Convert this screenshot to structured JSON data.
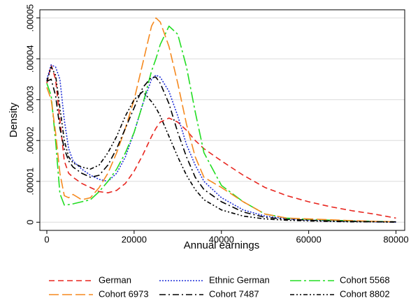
{
  "chart_data": {
    "type": "line",
    "xlabel": "Annual earnings",
    "ylabel": "Density",
    "x": [
      0,
      1000,
      2000,
      3000,
      4000,
      5000,
      6000,
      8000,
      10000,
      12000,
      14000,
      16000,
      18000,
      20000,
      22000,
      24000,
      25000,
      26000,
      28000,
      30000,
      32000,
      34000,
      36000,
      40000,
      45000,
      50000,
      55000,
      60000,
      65000,
      70000,
      75000,
      80000
    ],
    "xlim": [
      -1600,
      82000
    ],
    "xticks": [
      0,
      20000,
      40000,
      60000,
      80000
    ],
    "ylim": [
      -2e-06,
      5.2e-05
    ],
    "yticks": [
      0,
      {
        "value": 1e-05,
        "label": ".00001"
      },
      {
        "value": 2e-05,
        "label": ".00002"
      },
      {
        "value": 3e-05,
        "label": ".00003"
      },
      {
        "value": 4e-05,
        "label": ".00004"
      },
      {
        "value": 5e-05,
        "label": ".00005"
      }
    ],
    "grid": true,
    "legend": "bottom",
    "series": [
      {
        "name": "German",
        "color": "#e8261f",
        "dash": "8,5",
        "values": [
          3.4e-05,
          3.85e-05,
          3.5e-05,
          2.5e-05,
          1.5e-05,
          1.2e-05,
          1.1e-05,
          9.5e-06,
          8.5e-06,
          7.5e-06,
          7.2e-06,
          7.8e-06,
          9.5e-06,
          1.25e-05,
          1.65e-05,
          2.1e-05,
          2.3e-05,
          2.45e-05,
          2.55e-05,
          2.45e-05,
          2.25e-05,
          2e-05,
          1.8e-05,
          1.5e-05,
          1.15e-05,
          8.5e-06,
          6.5e-06,
          5e-06,
          3.8e-06,
          2.8e-06,
          2e-06,
          1e-06
        ]
      },
      {
        "name": "Ethnic German",
        "color": "#1f2fd8",
        "dash": "2,2",
        "values": [
          3.5e-05,
          3.85e-05,
          3.8e-05,
          3.5e-05,
          2.5e-05,
          1.8e-05,
          1.5e-05,
          1.3e-05,
          1.15e-05,
          1.05e-05,
          1e-05,
          1.2e-05,
          1.6e-05,
          2.2e-05,
          2.9e-05,
          3.5e-05,
          3.6e-05,
          3.55e-05,
          3.2e-05,
          2.6e-05,
          1.9e-05,
          1.4e-05,
          1e-05,
          6e-06,
          3e-06,
          1.5e-06,
          8e-07,
          5e-07,
          3e-07,
          2e-07,
          1e-07,
          0
        ]
      },
      {
        "name": "Cohort 5568",
        "color": "#22dd22",
        "dash": "16,4,3,4",
        "values": [
          3.4e-05,
          3.1e-05,
          2e-05,
          7e-06,
          4.2e-06,
          4.3e-06,
          4.5e-06,
          5e-06,
          5.5e-06,
          7.5e-06,
          1e-05,
          1.3e-05,
          1.7e-05,
          2.2e-05,
          2.9e-05,
          3.7e-05,
          4e-05,
          4.35e-05,
          4.8e-05,
          4.6e-05,
          3.8e-05,
          2.7e-05,
          1.7e-05,
          9e-06,
          5e-06,
          2e-06,
          1e-06,
          7e-07,
          5e-07,
          3e-07,
          2e-07,
          1e-07
        ]
      },
      {
        "name": "Cohort 6973",
        "color": "#f5891f",
        "dash": "14,5",
        "values": [
          3.3e-05,
          3e-05,
          2.2e-05,
          1.2e-05,
          6.5e-06,
          6e-06,
          6.8e-06,
          5.5e-06,
          6e-06,
          8.5e-06,
          1.2e-05,
          1.7e-05,
          2.3e-05,
          3e-05,
          3.9e-05,
          4.8e-05,
          5e-05,
          4.9e-05,
          4.3e-05,
          3.4e-05,
          2.4e-05,
          1.6e-05,
          1.1e-05,
          8.5e-06,
          5e-06,
          2e-06,
          1e-06,
          8e-07,
          6e-07,
          4e-07,
          2e-07,
          1e-07
        ]
      },
      {
        "name": "Cohort 7487",
        "color": "#000000",
        "dash": "9,4,2,4",
        "values": [
          3.45e-05,
          3.5e-05,
          3.1e-05,
          2.3e-05,
          1.8e-05,
          1.5e-05,
          1.35e-05,
          1.2e-05,
          1.1e-05,
          1.15e-05,
          1.4e-05,
          1.8e-05,
          2.3e-05,
          2.8e-05,
          3.3e-05,
          3.55e-05,
          3.55e-05,
          3.4e-05,
          2.9e-05,
          2.2e-05,
          1.6e-05,
          1.1e-05,
          8e-06,
          5e-06,
          2.5e-06,
          1.2e-06,
          7e-07,
          5e-07,
          3e-07,
          2e-07,
          1e-07,
          1e-07
        ]
      },
      {
        "name": "Cohort 8802",
        "color": "#000000",
        "dash": "6,3,2,3,2,3",
        "values": [
          3.45e-05,
          3.8e-05,
          3.6e-05,
          2.8e-05,
          2e-05,
          1.6e-05,
          1.45e-05,
          1.35e-05,
          1.3e-05,
          1.4e-05,
          1.7e-05,
          2.1e-05,
          2.6e-05,
          3e-05,
          3.2e-05,
          2.95e-05,
          2.8e-05,
          2.6e-05,
          2.1e-05,
          1.6e-05,
          1.15e-05,
          8e-06,
          5.5e-06,
          3e-06,
          1.5e-06,
          8e-07,
          5e-07,
          3e-07,
          2e-07,
          1e-07,
          1e-07,
          0
        ]
      }
    ]
  }
}
